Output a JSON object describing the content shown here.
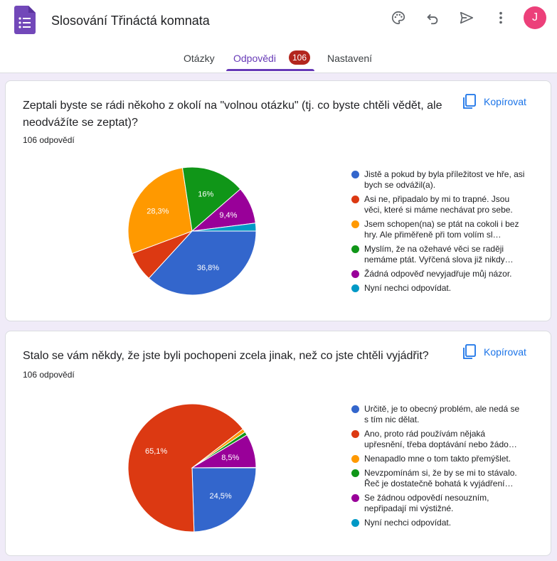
{
  "header": {
    "doc_title": "Slosování Třináctá komnata",
    "avatar_letter": "J"
  },
  "tabs": [
    {
      "label": "Otázky"
    },
    {
      "label": "Odpovědi",
      "badge": "106"
    },
    {
      "label": "Nastavení"
    }
  ],
  "copy_label": "Kopírovat",
  "colors": {
    "accent": "#673ab7",
    "link": "#1a73e8",
    "badge": "#b3261e",
    "series": [
      "#3366cc",
      "#dc3912",
      "#ff9900",
      "#109618",
      "#990099",
      "#0099c6"
    ]
  },
  "questions": [
    {
      "title": "Zeptali byste se rádi někoho z okolí na \"volnou otázku\" (tj. co byste chtěli vědět, ale neodvážíte se zeptat)?",
      "count": "106 odpovědí",
      "chart_data": {
        "type": "pie",
        "unit": "%",
        "series": [
          {
            "name": "Jistě a pokud by byla příležitost ve hře, asi bych se odvážil(a).",
            "value": 36.8,
            "label": "36,8%"
          },
          {
            "name": "Asi ne, připadalo by mi to trapné. Jsou věci, které si máme nechávat pro sebe.",
            "value": 7.5,
            "label": ""
          },
          {
            "name": "Jsem schopen(na) se ptát na cokoli i bez hry. Ale přiměřeně při tom volím sl…",
            "value": 28.3,
            "label": "28,3%"
          },
          {
            "name": "Myslím, že na ožehavé věci se raději nemáme ptát. Vyřčená slova již nikdy…",
            "value": 16.0,
            "label": "16%"
          },
          {
            "name": "Žádná odpověď nevyjadřuje můj názor.",
            "value": 9.4,
            "label": "9,4%"
          },
          {
            "name": "Nyní nechci odpovídat.",
            "value": 2.0,
            "label": ""
          }
        ]
      }
    },
    {
      "title": "Stalo se vám někdy, že jste byli pochopeni zcela jinak, než co jste chtěli vyjádřit?",
      "count": "106 odpovědí",
      "chart_data": {
        "type": "pie",
        "unit": "%",
        "series": [
          {
            "name": "Určitě, je to obecný problém, ale nedá se s tím nic dělat.",
            "value": 24.5,
            "label": "24,5%"
          },
          {
            "name": "Ano, proto rád používám nějaká upřesnění, třeba doptávání nebo žádo…",
            "value": 65.1,
            "label": "65,1%"
          },
          {
            "name": "Nenapadlo mne o tom takto přemýšlet.",
            "value": 0.9,
            "label": ""
          },
          {
            "name": "Nevzpomínám si, že by se mi to stávalo. Řeč je dostatečně bohatá k vyjádření…",
            "value": 0.9,
            "label": ""
          },
          {
            "name": "Se žádnou odpovědí nesouzním, nepřipadají mi výstižné.",
            "value": 8.5,
            "label": "8,5%"
          },
          {
            "name": "Nyní nechci odpovídat.",
            "value": 0.1,
            "label": ""
          }
        ]
      }
    }
  ]
}
